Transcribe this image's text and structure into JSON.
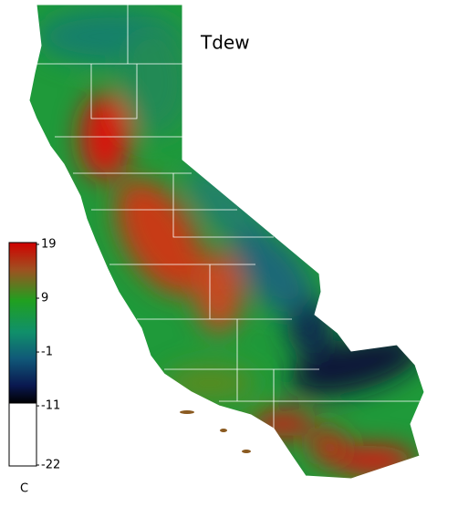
{
  "title": "Tdew",
  "legend": {
    "unit": "C",
    "range": [
      -22,
      19
    ],
    "ticks": [
      19,
      9,
      -1,
      -11,
      -22
    ]
  }
}
